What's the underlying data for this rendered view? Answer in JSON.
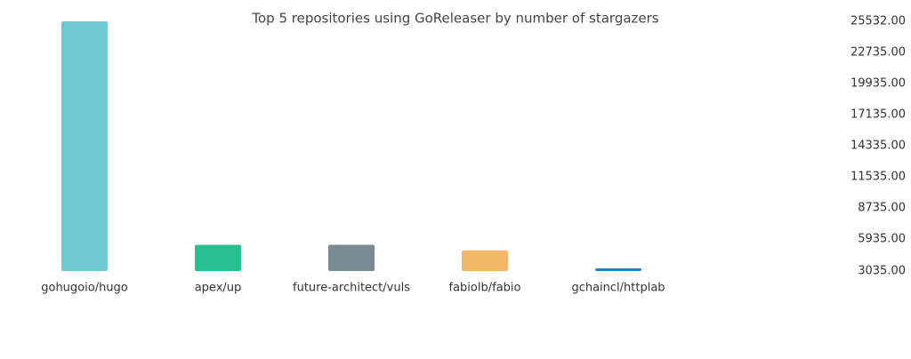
{
  "chart_data": {
    "type": "bar",
    "title": "Top 5 repositories using GoReleaser by number of stargazers",
    "categories": [
      "gohugoio/hugo",
      "apex/up",
      "future-architect/vuls",
      "fabiolb/fabio",
      "gchaincl/httplab"
    ],
    "values": [
      25532,
      5400,
      5400,
      4900,
      3200
    ],
    "colors": [
      "#6ec9d2",
      "#27c08f",
      "#7a8a93",
      "#f3b76a",
      "#1f7fc0"
    ],
    "ylim": [
      3035,
      25532
    ],
    "yticks": [
      {
        "value": 3035,
        "label": "3035.00"
      },
      {
        "value": 5935,
        "label": "5935.00"
      },
      {
        "value": 8735,
        "label": "8735.00"
      },
      {
        "value": 11535,
        "label": "11535.00"
      },
      {
        "value": 14335,
        "label": "14335.00"
      },
      {
        "value": 17135,
        "label": "17135.00"
      },
      {
        "value": 19935,
        "label": "19935.00"
      },
      {
        "value": 22735,
        "label": "22735.00"
      },
      {
        "value": 25532,
        "label": "25532.00"
      }
    ],
    "grid": false
  }
}
